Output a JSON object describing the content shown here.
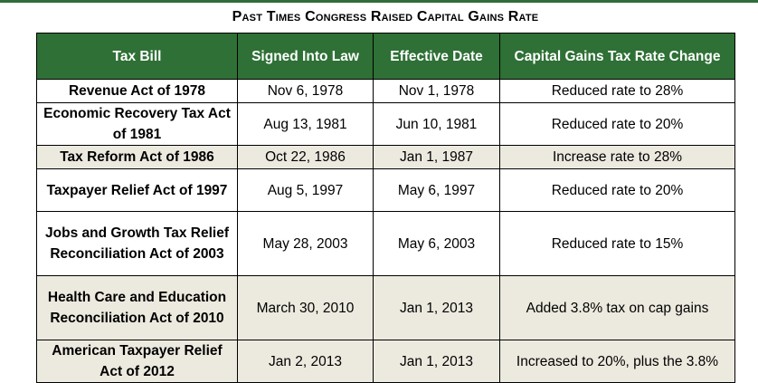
{
  "title": "Past Times Congress Raised Capital Gains Rate",
  "columns": [
    "Tax Bill",
    "Signed Into Law",
    "Effective Date",
    "Capital Gains Tax Rate Change"
  ],
  "rows": [
    {
      "bill": "Revenue Act of 1978",
      "signed": "Nov 6, 1978",
      "effective": "Nov 1, 1978",
      "change": "Reduced rate to 28%"
    },
    {
      "bill": "Economic Recovery Tax Act of 1981",
      "signed": "Aug 13, 1981",
      "effective": "Jun 10, 1981",
      "change": "Reduced rate to 20%"
    },
    {
      "bill": "Tax Reform Act of 1986",
      "signed": "Oct 22, 1986",
      "effective": "Jan 1, 1987",
      "change": "Increase rate to 28%"
    },
    {
      "bill": "Taxpayer Relief Act of 1997",
      "signed": "Aug 5, 1997",
      "effective": "May 6, 1997",
      "change": "Reduced rate to 20%"
    },
    {
      "bill": "Jobs and Growth Tax Relief Reconciliation Act of 2003",
      "signed": "May 28, 2003",
      "effective": "May 6, 2003",
      "change": "Reduced rate to 15%"
    },
    {
      "bill": "Health Care and Education Reconciliation Act of 2010",
      "signed": "March 30, 2010",
      "effective": "Jan 1, 2013",
      "change": "Added 3.8% tax on cap gains"
    },
    {
      "bill": "American Taxpayer Relief Act of 2012",
      "signed": "Jan 2, 2013",
      "effective": "Jan 1, 2013",
      "change": "Increased to 20%, plus the 3.8%"
    }
  ],
  "colors": {
    "header_bg": "#2e7035",
    "header_text": "#ffffff",
    "shaded_row": "#eceadf",
    "top_rule": "#2f6e3b"
  }
}
